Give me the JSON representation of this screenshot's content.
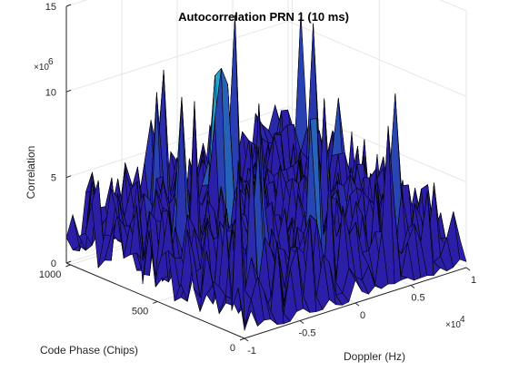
{
  "chart_data": {
    "type": "surface",
    "title": "Autocorrelation PRN 1 (10 ms)",
    "xlabel": "Doppler (Hz)",
    "ylabel": "Code Phase (Chips)",
    "zlabel": "Correlation",
    "xlim": [
      -10000,
      10000
    ],
    "ylim": [
      0,
      1023
    ],
    "zlim": [
      0,
      15000000
    ],
    "x_ticks": [
      "-1",
      "-0.5",
      "0",
      "0.5",
      "1"
    ],
    "x_exponent": "×10",
    "x_exponent_power": "4",
    "y_ticks": [
      "0",
      "500",
      "1000"
    ],
    "z_ticks": [
      "0",
      "5",
      "10",
      "15"
    ],
    "z_exponent": "×10",
    "z_exponent_power": "6",
    "grid": true,
    "colormap": "parula",
    "edge_color": "#000000",
    "noise_floor_mean": 3000000,
    "peak_max": 13000000,
    "colors": {
      "axis": "#262626",
      "grid": "#e6e6e6",
      "surface_low": "#2b1fa8",
      "surface_high": "#20c9d4"
    }
  }
}
